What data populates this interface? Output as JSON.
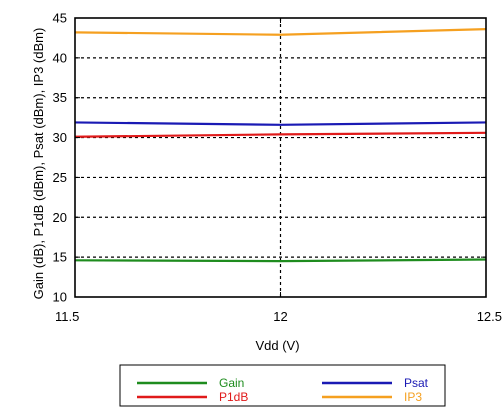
{
  "chart_data": {
    "type": "line",
    "xlabel": "Vdd (V)",
    "ylabel": "Gain (dB), P1dB (dBm), Psat (dBm), IP3 (dBm)",
    "x": [
      11.5,
      12,
      12.5
    ],
    "xlim": [
      11.5,
      12.5
    ],
    "ylim": [
      10,
      45
    ],
    "xticks": [
      "11.5",
      "12",
      "12.5"
    ],
    "yticks": [
      "10",
      "15",
      "20",
      "25",
      "30",
      "35",
      "40",
      "45"
    ],
    "grid": true,
    "legend_position": "bottom-center",
    "series": [
      {
        "name": "Gain",
        "values": [
          14.6,
          14.5,
          14.7
        ],
        "color": "#1e8c1e"
      },
      {
        "name": "P1dB",
        "values": [
          30.1,
          30.4,
          30.6
        ],
        "color": "#e01a1a"
      },
      {
        "name": "Psat",
        "values": [
          31.9,
          31.6,
          31.9
        ],
        "color": "#1a1ab4"
      },
      {
        "name": "IP3",
        "values": [
          43.2,
          42.9,
          43.6
        ],
        "color": "#f5a020"
      }
    ]
  }
}
